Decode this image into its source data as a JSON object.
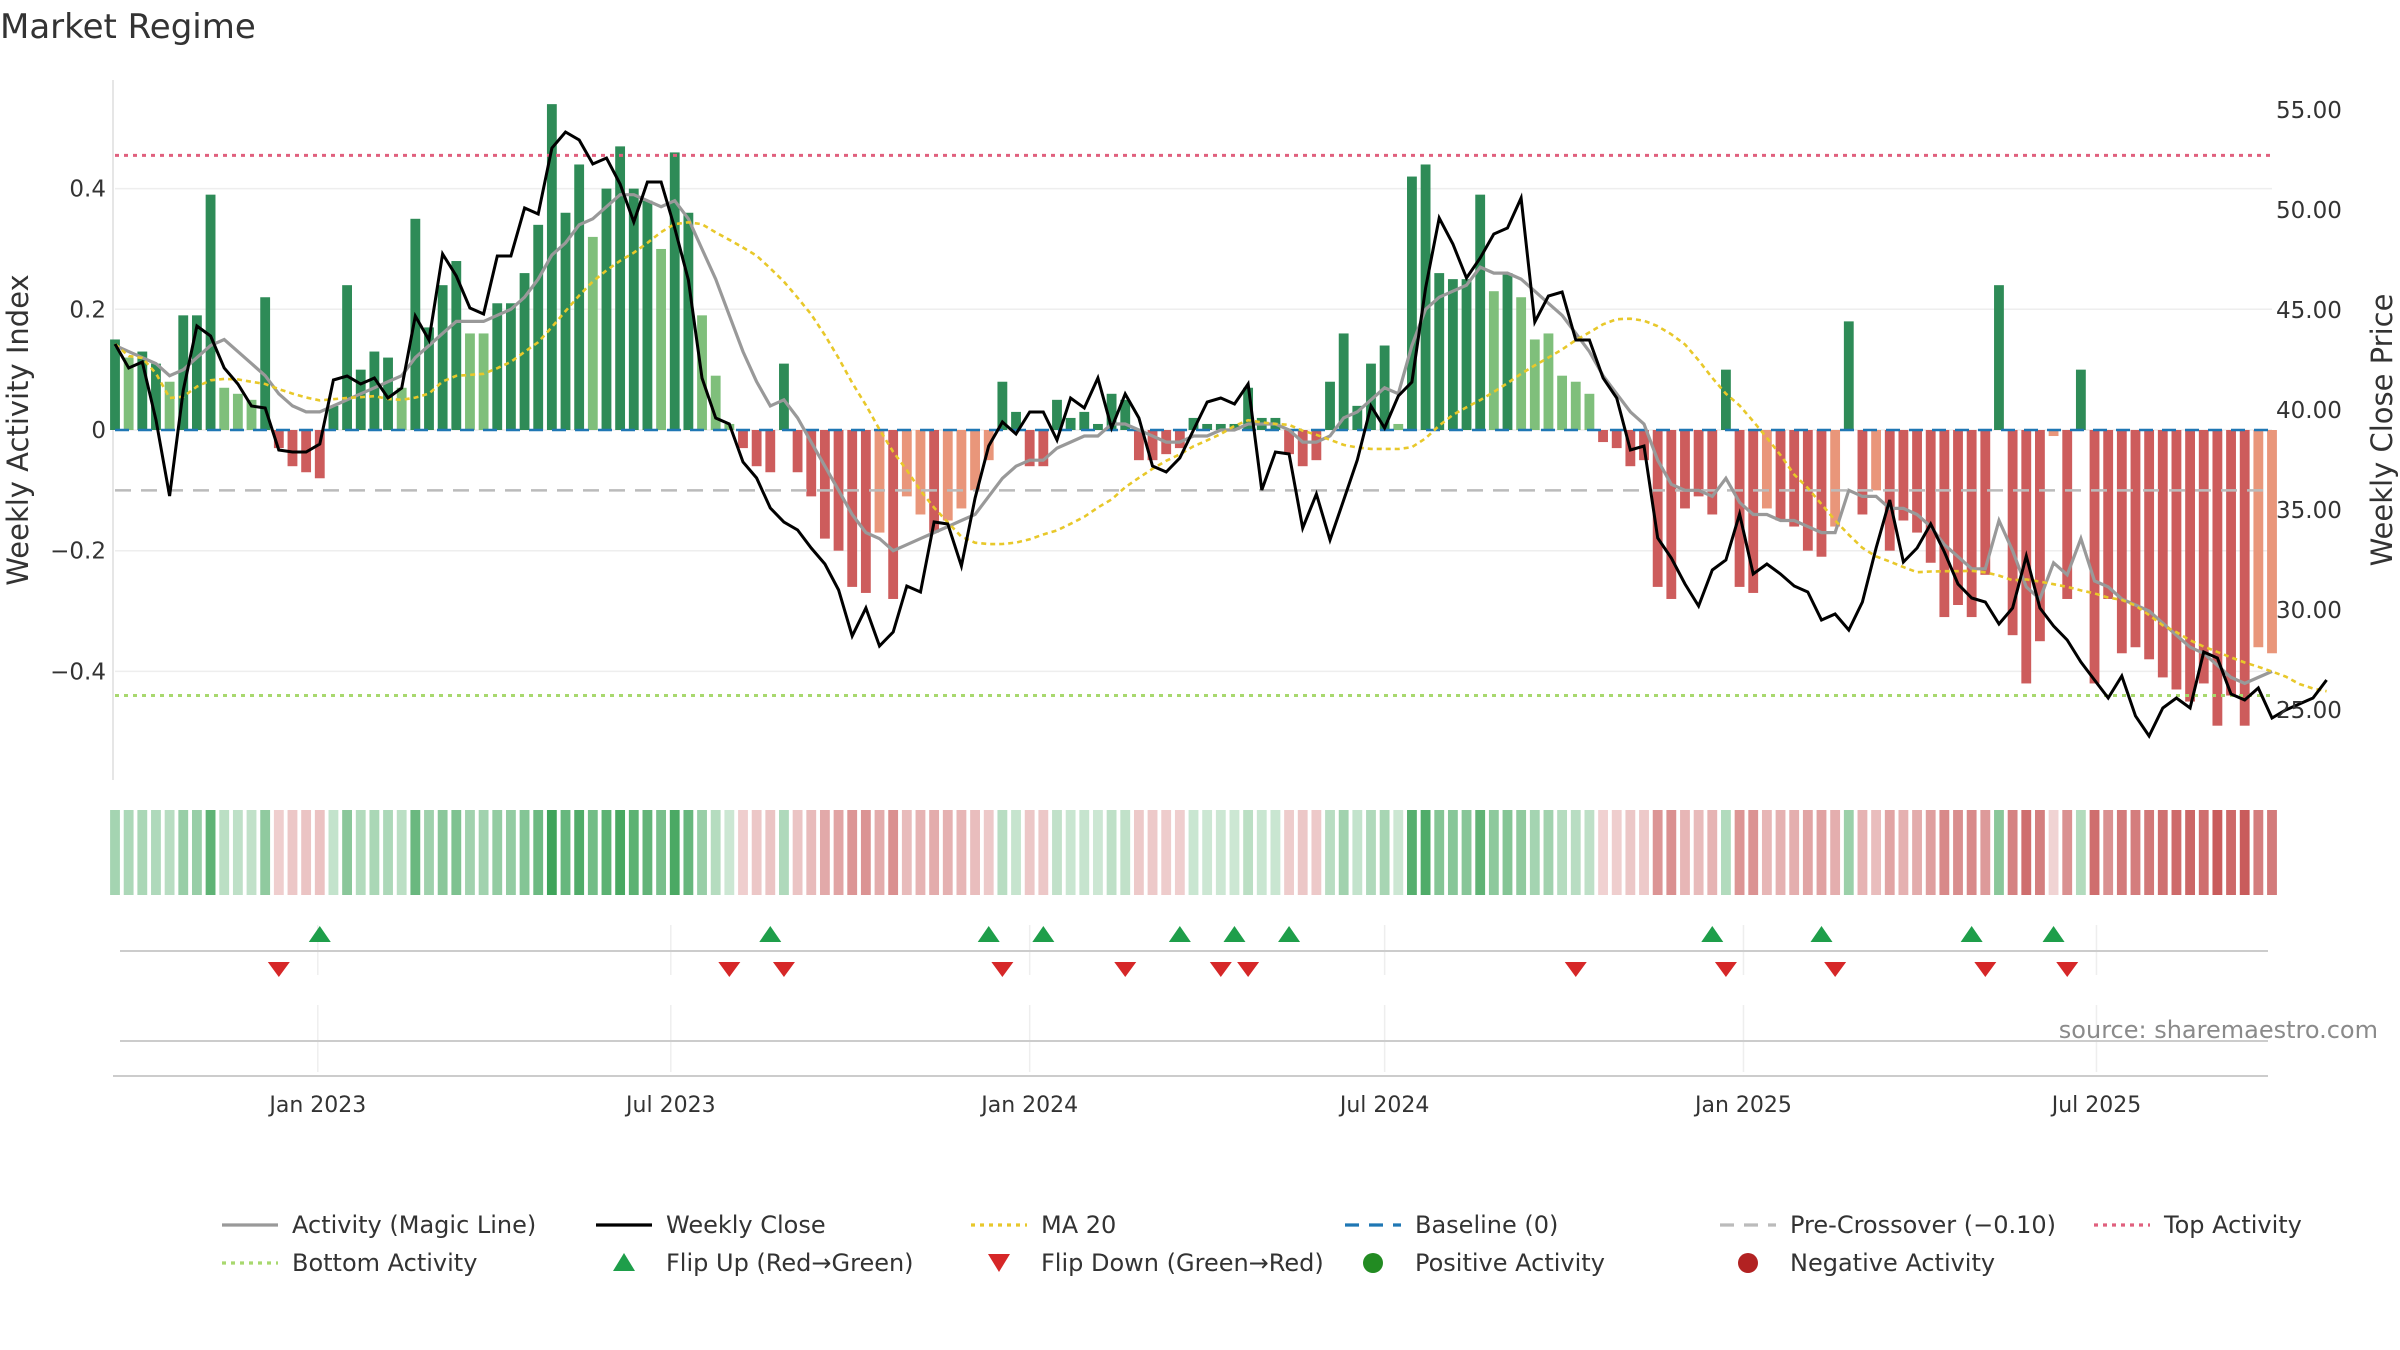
{
  "title": "Market Regime",
  "source": "source: sharemaestro.com",
  "colors": {
    "strong_green": "#2e8b57",
    "light_green": "#7fbf7b",
    "strong_red": "#cd5c5c",
    "light_red": "#e9967a",
    "activity": "#999999",
    "close": "#000000",
    "ma20": "#e8c82a",
    "baseline": "#1f77b4",
    "pre_crossover": "#bbbbbb",
    "top": "#e0607e",
    "bottom": "#a8d86e",
    "flip_up": "#1e9e4a",
    "flip_down": "#d62728",
    "positive_dot": "#228b22",
    "negative_dot": "#b22222"
  },
  "chart_data": {
    "type": "bar",
    "y_left_label": "Weekly Activity Index",
    "y_right_label": "Weekly Close Price",
    "y_left_lim": [
      -0.58,
      0.58
    ],
    "y_right_lim": [
      21.5,
      56.5
    ],
    "y_left_ticks": [
      {
        "value": 0.4,
        "label": "0.4"
      },
      {
        "value": 0.2,
        "label": "0.2"
      },
      {
        "value": 0,
        "label": "0"
      },
      {
        "value": -0.2,
        "label": "−0.2"
      },
      {
        "value": -0.4,
        "label": "−0.4"
      }
    ],
    "y_right_ticks": [
      {
        "value": 55,
        "label": "55.00"
      },
      {
        "value": 50,
        "label": "50.00"
      },
      {
        "value": 45,
        "label": "45.00"
      },
      {
        "value": 40,
        "label": "40.00"
      },
      {
        "value": 35,
        "label": "35.00"
      },
      {
        "value": 30,
        "label": "30.00"
      },
      {
        "value": 25,
        "label": "25.00"
      }
    ],
    "x_range": [
      "2022-09-19",
      "2025-09-29"
    ],
    "x_ticks": [
      {
        "date": "2023-01-01",
        "label": "Jan 2023"
      },
      {
        "date": "2023-07-01",
        "label": "Jul 2023"
      },
      {
        "date": "2024-01-01",
        "label": "Jan 2024"
      },
      {
        "date": "2024-07-01",
        "label": "Jul 2024"
      },
      {
        "date": "2025-01-01",
        "label": "Jan 2025"
      },
      {
        "date": "2025-07-01",
        "label": "Jul 2025"
      }
    ],
    "reference_lines": {
      "baseline": 0,
      "pre_crossover": -0.1,
      "top_activity": 0.455,
      "bottom_activity": -0.44
    },
    "start_week": "2022-09-19",
    "weekly_activity": [
      0.15,
      0.12,
      0.13,
      0.11,
      0.08,
      0.19,
      0.19,
      0.39,
      0.07,
      0.06,
      0.05,
      0.22,
      -0.03,
      -0.06,
      -0.07,
      -0.08,
      0.04,
      0.24,
      0.1,
      0.13,
      0.12,
      0.07,
      0.35,
      0.17,
      0.24,
      0.28,
      0.16,
      0.16,
      0.21,
      0.21,
      0.26,
      0.34,
      0.54,
      0.36,
      0.44,
      0.32,
      0.4,
      0.47,
      0.4,
      0.38,
      0.3,
      0.46,
      0.36,
      0.19,
      0.09,
      0.01,
      -0.03,
      -0.06,
      -0.07,
      0.11,
      -0.07,
      -0.11,
      -0.18,
      -0.2,
      -0.26,
      -0.27,
      -0.17,
      -0.28,
      -0.11,
      -0.14,
      -0.17,
      -0.15,
      -0.13,
      -0.1,
      -0.05,
      0.08,
      0.03,
      -0.06,
      -0.06,
      0.05,
      0.02,
      0.03,
      0.01,
      0.06,
      0.05,
      -0.05,
      -0.05,
      -0.04,
      -0.03,
      0.02,
      0.01,
      0.01,
      0.01,
      0.07,
      0.02,
      0.02,
      -0.04,
      -0.06,
      -0.05,
      0.08,
      0.16,
      0.04,
      0.11,
      0.14,
      0.01,
      0.42,
      0.44,
      0.26,
      0.25,
      0.25,
      0.39,
      0.23,
      0.26,
      0.22,
      0.15,
      0.16,
      0.09,
      0.08,
      0.06,
      -0.02,
      -0.03,
      -0.06,
      -0.05,
      -0.26,
      -0.28,
      -0.13,
      -0.11,
      -0.14,
      0.1,
      -0.26,
      -0.27,
      -0.13,
      -0.15,
      -0.16,
      -0.2,
      -0.21,
      -0.16,
      0.18,
      -0.14,
      -0.1,
      -0.2,
      -0.15,
      -0.17,
      -0.22,
      -0.31,
      -0.29,
      -0.31,
      -0.24,
      0.24,
      -0.34,
      -0.42,
      -0.35,
      -0.01,
      -0.28,
      0.1,
      -0.42,
      -0.28,
      -0.37,
      -0.36,
      -0.38,
      -0.41,
      -0.43,
      -0.45,
      -0.42,
      -0.49,
      -0.44,
      -0.49,
      -0.36,
      -0.37
    ],
    "activity_magic_line": [
      0.14,
      0.13,
      0.12,
      0.11,
      0.09,
      0.1,
      0.12,
      0.14,
      0.15,
      0.13,
      0.11,
      0.09,
      0.06,
      0.04,
      0.03,
      0.03,
      0.04,
      0.05,
      0.06,
      0.07,
      0.08,
      0.09,
      0.12,
      0.14,
      0.16,
      0.18,
      0.18,
      0.18,
      0.19,
      0.2,
      0.22,
      0.25,
      0.29,
      0.31,
      0.34,
      0.35,
      0.37,
      0.39,
      0.39,
      0.38,
      0.37,
      0.38,
      0.35,
      0.3,
      0.25,
      0.19,
      0.13,
      0.08,
      0.04,
      0.05,
      0.02,
      -0.02,
      -0.06,
      -0.1,
      -0.14,
      -0.17,
      -0.18,
      -0.2,
      -0.19,
      -0.18,
      -0.17,
      -0.16,
      -0.15,
      -0.14,
      -0.11,
      -0.08,
      -0.06,
      -0.05,
      -0.05,
      -0.03,
      -0.02,
      -0.01,
      -0.01,
      0.01,
      0.01,
      0.0,
      -0.01,
      -0.02,
      -0.02,
      -0.01,
      -0.01,
      0.0,
      0.0,
      0.01,
      0.01,
      0.01,
      0.0,
      -0.02,
      -0.02,
      -0.01,
      0.02,
      0.03,
      0.05,
      0.07,
      0.06,
      0.14,
      0.2,
      0.22,
      0.23,
      0.24,
      0.27,
      0.26,
      0.26,
      0.25,
      0.23,
      0.21,
      0.19,
      0.16,
      0.13,
      0.09,
      0.06,
      0.03,
      0.01,
      -0.05,
      -0.09,
      -0.1,
      -0.1,
      -0.11,
      -0.08,
      -0.12,
      -0.14,
      -0.14,
      -0.15,
      -0.15,
      -0.16,
      -0.17,
      -0.17,
      -0.1,
      -0.11,
      -0.11,
      -0.13,
      -0.13,
      -0.14,
      -0.16,
      -0.19,
      -0.21,
      -0.23,
      -0.23,
      -0.15,
      -0.2,
      -0.26,
      -0.28,
      -0.22,
      -0.24,
      -0.18,
      -0.25,
      -0.26,
      -0.28,
      -0.29,
      -0.3,
      -0.32,
      -0.34,
      -0.36,
      -0.37,
      -0.39,
      -0.41,
      -0.42,
      -0.41,
      -0.4
    ],
    "weekly_close": [
      43.3,
      42.1,
      42.4,
      39.5,
      35.7,
      41.0,
      44.2,
      43.7,
      42.1,
      41.3,
      40.2,
      40.1,
      38.0,
      37.9,
      37.9,
      38.3,
      41.5,
      41.7,
      41.3,
      41.6,
      40.6,
      41.1,
      44.7,
      43.5,
      47.8,
      46.7,
      45.1,
      44.8,
      47.7,
      47.7,
      50.1,
      49.8,
      53.1,
      53.9,
      53.5,
      52.3,
      52.6,
      51.3,
      49.4,
      51.4,
      51.4,
      49.1,
      46.5,
      41.6,
      39.6,
      39.3,
      37.4,
      36.6,
      35.1,
      34.4,
      34.0,
      33.1,
      32.3,
      31.0,
      28.7,
      30.1,
      28.2,
      28.9,
      31.2,
      30.9,
      34.4,
      34.3,
      32.2,
      35.6,
      38.2,
      39.4,
      38.8,
      39.9,
      39.9,
      38.5,
      40.6,
      40.1,
      41.6,
      39.1,
      40.8,
      39.6,
      37.2,
      36.9,
      37.6,
      39.0,
      40.4,
      40.6,
      40.3,
      41.3,
      36.0,
      37.9,
      37.8,
      34.1,
      35.8,
      33.5,
      35.5,
      37.5,
      40.2,
      39.1,
      40.7,
      41.4,
      46.1,
      49.6,
      48.3,
      46.6,
      47.6,
      48.8,
      49.1,
      50.6,
      44.4,
      45.7,
      45.9,
      43.5,
      43.5,
      41.6,
      40.6,
      38.0,
      38.2,
      33.6,
      32.6,
      31.3,
      30.2,
      32.0,
      32.5,
      34.8,
      31.8,
      32.3,
      31.8,
      31.2,
      30.9,
      29.5,
      29.8,
      29.0,
      30.4,
      33.1,
      35.5,
      32.4,
      33.1,
      34.3,
      32.9,
      31.3,
      30.6,
      30.4,
      29.3,
      30.1,
      32.7,
      30.1,
      29.2,
      28.5,
      27.4,
      26.5,
      25.6,
      26.7,
      24.7,
      23.7,
      25.1,
      25.6,
      25.1,
      27.9,
      27.6,
      25.8,
      25.5,
      26.1,
      24.6,
      25.0,
      25.3,
      25.6,
      26.5
    ]
  },
  "markers": {
    "flip_up_weeks": [
      15,
      48,
      64,
      68,
      78,
      82,
      86,
      117,
      125,
      136,
      142
    ],
    "flip_down_weeks": [
      12,
      45,
      49,
      65,
      74,
      81,
      83,
      107,
      118,
      126,
      137,
      143
    ]
  },
  "legend": [
    {
      "label": "Activity (Magic Line)",
      "key": "activity",
      "style": "line"
    },
    {
      "label": "Weekly Close",
      "key": "close",
      "style": "line"
    },
    {
      "label": "MA 20",
      "key": "ma20",
      "style": "dotted"
    },
    {
      "label": "Baseline (0)",
      "key": "baseline",
      "style": "dashed"
    },
    {
      "label": "Pre-Crossover (−0.10)",
      "key": "pre_crossover",
      "style": "dashed"
    },
    {
      "label": "Top Activity",
      "key": "top",
      "style": "dotted"
    },
    {
      "label": "Bottom Activity",
      "key": "bottom",
      "style": "dotted"
    },
    {
      "label": "Flip Up (Red→Green)",
      "key": "flip_up",
      "style": "triangle-up"
    },
    {
      "label": "Flip Down (Green→Red)",
      "key": "flip_down",
      "style": "triangle-down"
    },
    {
      "label": "Positive Activity",
      "key": "positive_dot",
      "style": "dot"
    },
    {
      "label": "Negative Activity",
      "key": "negative_dot",
      "style": "dot"
    }
  ]
}
